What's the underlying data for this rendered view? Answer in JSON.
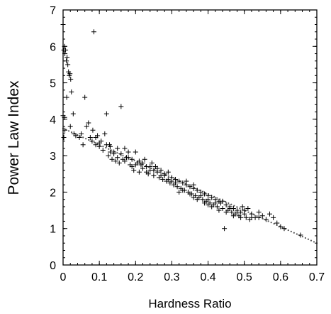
{
  "chart_data": {
    "type": "scatter",
    "xlabel": "Hardness Ratio",
    "ylabel": "Power Law Index",
    "xlim": [
      0,
      0.7
    ],
    "ylim": [
      0,
      7
    ],
    "xticks": [
      "0",
      "0.1",
      "0.2",
      "0.3",
      "0.4",
      "0.5",
      "0.6",
      "0.7"
    ],
    "yticks": [
      "0",
      "1",
      "2",
      "3",
      "4",
      "5",
      "6",
      "7"
    ],
    "grid": false,
    "legend": "none",
    "series": [
      {
        "marker": "cross",
        "color": "#000000",
        "points": [
          [
            0.0,
            6.6
          ],
          [
            0.002,
            5.9
          ],
          [
            0.004,
            6.0
          ],
          [
            0.005,
            5.8
          ],
          [
            0.007,
            5.9
          ],
          [
            0.009,
            5.6
          ],
          [
            0.011,
            5.7
          ],
          [
            0.013,
            5.5
          ],
          [
            0.015,
            5.3
          ],
          [
            0.017,
            5.2
          ],
          [
            0.019,
            5.25
          ],
          [
            0.021,
            5.1
          ],
          [
            0.023,
            4.75
          ],
          [
            0.01,
            4.6
          ],
          [
            0.0,
            4.1
          ],
          [
            0.004,
            4.05
          ],
          [
            0.002,
            3.5
          ],
          [
            0.005,
            3.7
          ],
          [
            0.02,
            3.8
          ],
          [
            0.028,
            4.15
          ],
          [
            0.03,
            3.6
          ],
          [
            0.035,
            3.55
          ],
          [
            0.045,
            3.5
          ],
          [
            0.05,
            3.6
          ],
          [
            0.055,
            3.3
          ],
          [
            0.06,
            4.6
          ],
          [
            0.065,
            3.8
          ],
          [
            0.07,
            3.9
          ],
          [
            0.075,
            3.5
          ],
          [
            0.08,
            3.4
          ],
          [
            0.082,
            3.7
          ],
          [
            0.085,
            6.4
          ],
          [
            0.09,
            3.3
          ],
          [
            0.095,
            3.55
          ],
          [
            0.1,
            3.25
          ],
          [
            0.105,
            3.4
          ],
          [
            0.11,
            3.15
          ],
          [
            0.115,
            3.6
          ],
          [
            0.12,
            4.15
          ],
          [
            0.125,
            3.0
          ],
          [
            0.128,
            3.3
          ],
          [
            0.13,
            3.1
          ],
          [
            0.135,
            2.9
          ],
          [
            0.14,
            3.05
          ],
          [
            0.145,
            2.85
          ],
          [
            0.15,
            3.2
          ],
          [
            0.155,
            2.8
          ],
          [
            0.16,
            4.35
          ],
          [
            0.165,
            2.9
          ],
          [
            0.17,
            3.2
          ],
          [
            0.175,
            2.95
          ],
          [
            0.18,
            3.1
          ],
          [
            0.185,
            2.75
          ],
          [
            0.19,
            2.9
          ],
          [
            0.195,
            2.6
          ],
          [
            0.2,
            3.1
          ],
          [
            0.205,
            2.8
          ],
          [
            0.21,
            2.55
          ],
          [
            0.215,
            2.75
          ],
          [
            0.22,
            2.65
          ],
          [
            0.225,
            2.9
          ],
          [
            0.23,
            2.7
          ],
          [
            0.235,
            2.5
          ],
          [
            0.24,
            2.6
          ],
          [
            0.245,
            2.8
          ],
          [
            0.25,
            2.45
          ],
          [
            0.255,
            2.7
          ],
          [
            0.26,
            2.55
          ],
          [
            0.265,
            2.4
          ],
          [
            0.27,
            2.6
          ],
          [
            0.275,
            2.35
          ],
          [
            0.28,
            2.5
          ],
          [
            0.285,
            2.3
          ],
          [
            0.29,
            2.55
          ],
          [
            0.295,
            2.25
          ],
          [
            0.3,
            2.4
          ],
          [
            0.305,
            2.2
          ],
          [
            0.31,
            2.35
          ],
          [
            0.315,
            2.15
          ],
          [
            0.32,
            2.3
          ],
          [
            0.325,
            2.1
          ],
          [
            0.33,
            2.25
          ],
          [
            0.335,
            2.05
          ],
          [
            0.34,
            2.2
          ],
          [
            0.345,
            2.0
          ],
          [
            0.35,
            2.15
          ],
          [
            0.355,
            1.95
          ],
          [
            0.36,
            2.1
          ],
          [
            0.365,
            1.9
          ],
          [
            0.37,
            2.05
          ],
          [
            0.375,
            1.85
          ],
          [
            0.38,
            2.0
          ],
          [
            0.385,
            1.8
          ],
          [
            0.39,
            1.95
          ],
          [
            0.395,
            1.75
          ],
          [
            0.4,
            1.9
          ],
          [
            0.405,
            1.7
          ],
          [
            0.41,
            1.85
          ],
          [
            0.415,
            1.65
          ],
          [
            0.42,
            1.8
          ],
          [
            0.425,
            1.6
          ],
          [
            0.43,
            1.75
          ],
          [
            0.435,
            1.7
          ],
          [
            0.44,
            1.55
          ],
          [
            0.445,
            1.0
          ],
          [
            0.45,
            1.65
          ],
          [
            0.455,
            1.5
          ],
          [
            0.46,
            1.6
          ],
          [
            0.465,
            1.45
          ],
          [
            0.47,
            1.55
          ],
          [
            0.475,
            1.4
          ],
          [
            0.48,
            1.5
          ],
          [
            0.485,
            1.35
          ],
          [
            0.49,
            1.45
          ],
          [
            0.495,
            1.6
          ],
          [
            0.5,
            1.4
          ],
          [
            0.505,
            1.3
          ],
          [
            0.51,
            1.55
          ],
          [
            0.515,
            1.25
          ],
          [
            0.52,
            1.4
          ],
          [
            0.53,
            1.3
          ],
          [
            0.54,
            1.45
          ],
          [
            0.55,
            1.35
          ],
          [
            0.56,
            1.25
          ],
          [
            0.57,
            1.4
          ],
          [
            0.58,
            1.3
          ],
          [
            0.59,
            1.15
          ],
          [
            0.6,
            1.05
          ],
          [
            0.61,
            1.0
          ],
          [
            0.655,
            0.82
          ],
          [
            0.34,
            2.3
          ],
          [
            0.36,
            2.2
          ],
          [
            0.38,
            1.9
          ],
          [
            0.4,
            1.8
          ],
          [
            0.42,
            1.7
          ],
          [
            0.3,
            2.3
          ],
          [
            0.28,
            2.45
          ],
          [
            0.26,
            2.65
          ],
          [
            0.24,
            2.7
          ],
          [
            0.22,
            2.8
          ],
          [
            0.2,
            2.75
          ],
          [
            0.18,
            2.95
          ],
          [
            0.16,
            3.05
          ],
          [
            0.14,
            3.1
          ],
          [
            0.12,
            3.3
          ],
          [
            0.1,
            3.35
          ],
          [
            0.09,
            3.5
          ],
          [
            0.33,
            2.05
          ],
          [
            0.35,
            1.95
          ],
          [
            0.37,
            1.8
          ],
          [
            0.39,
            1.7
          ],
          [
            0.41,
            1.6
          ],
          [
            0.43,
            1.5
          ],
          [
            0.45,
            1.45
          ],
          [
            0.47,
            1.35
          ],
          [
            0.49,
            1.3
          ],
          [
            0.25,
            2.6
          ],
          [
            0.27,
            2.45
          ],
          [
            0.29,
            2.35
          ],
          [
            0.31,
            2.25
          ],
          [
            0.21,
            2.85
          ],
          [
            0.23,
            2.55
          ],
          [
            0.19,
            2.7
          ],
          [
            0.17,
            2.85
          ],
          [
            0.15,
            2.95
          ],
          [
            0.13,
            3.25
          ],
          [
            0.44,
            1.75
          ],
          [
            0.46,
            1.55
          ],
          [
            0.48,
            1.45
          ],
          [
            0.5,
            1.5
          ],
          [
            0.52,
            1.3
          ],
          [
            0.54,
            1.3
          ],
          [
            0.32,
            2.0
          ],
          [
            0.36,
            1.85
          ],
          [
            0.4,
            1.65
          ]
        ]
      },
      {
        "marker": "dot",
        "color": "#555555",
        "x_start": 0.0,
        "y_start": 3.75,
        "x_end": 0.7,
        "y_end": 0.6,
        "count": 90
      }
    ]
  }
}
